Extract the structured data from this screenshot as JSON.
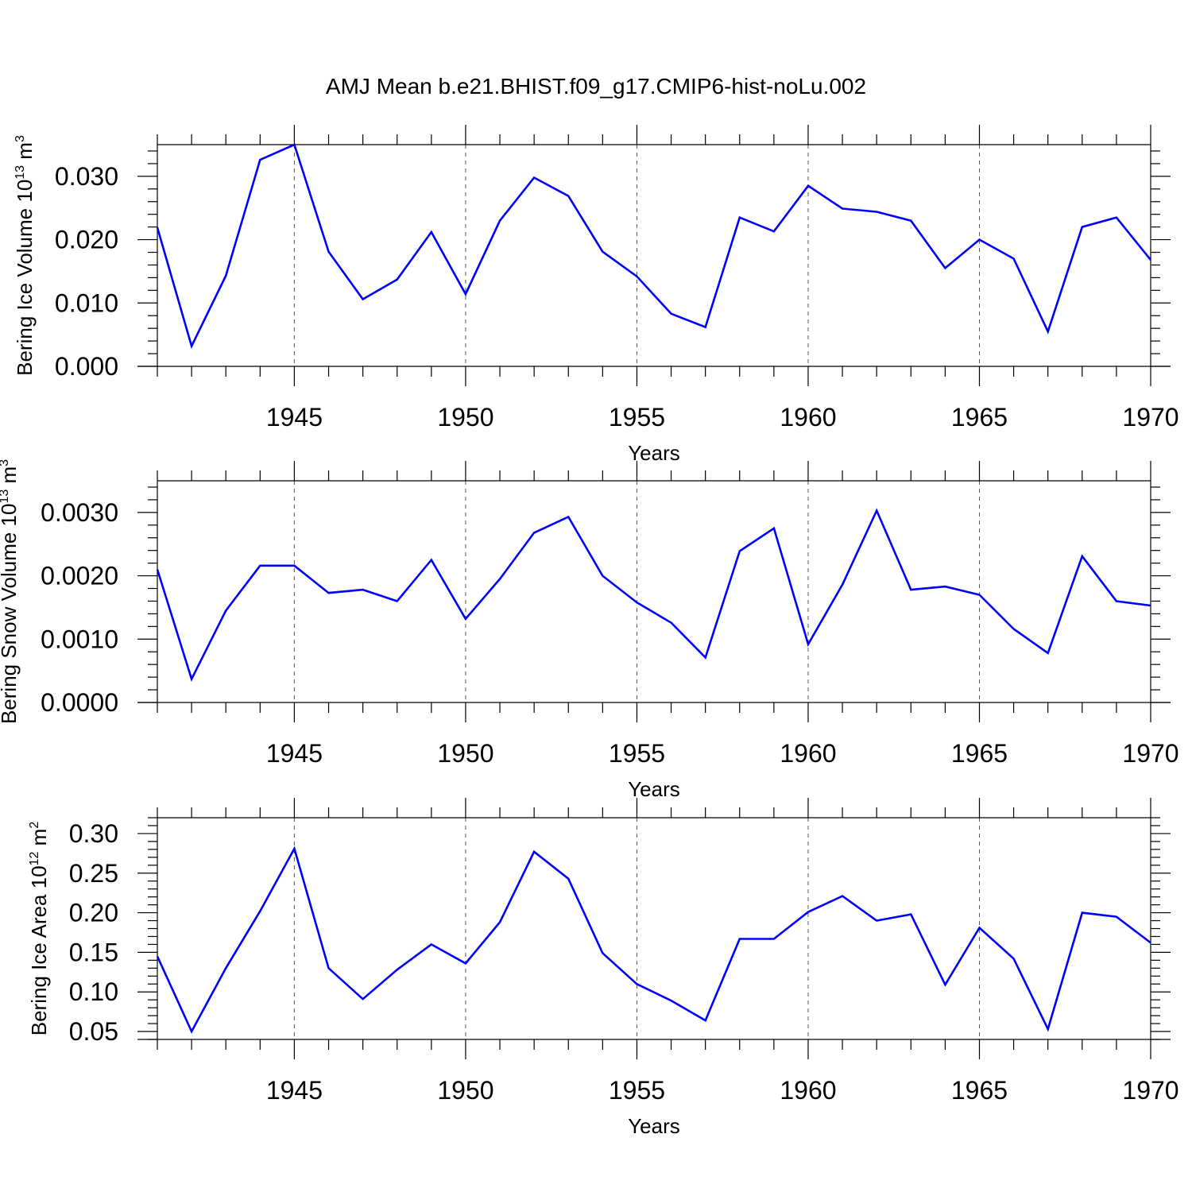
{
  "title": "AMJ Mean b.e21.BHIST.f09_g17.CMIP6-hist-noLu.002",
  "colors": {
    "line": "#0000ff",
    "axes": "#000000",
    "grid": "#555555"
  },
  "chart_data": [
    {
      "type": "line",
      "ylabel": {
        "base": "Bering Ice Volume 10",
        "exp": "13",
        "unit": " m",
        "unit_exp": "3"
      },
      "xlabel": "Years",
      "xlim": [
        1941,
        1970
      ],
      "ylim": [
        0.0,
        0.035
      ],
      "xticks": [
        1945,
        1950,
        1955,
        1960,
        1965,
        1970
      ],
      "yticks": [
        0.0,
        0.01,
        0.02,
        0.03
      ],
      "ytick_labels": [
        "0.000",
        "0.010",
        "0.020",
        "0.030"
      ],
      "grid": "vertical dashed at major x ticks",
      "x": [
        1941,
        1942,
        1943,
        1944,
        1945,
        1946,
        1947,
        1948,
        1949,
        1950,
        1951,
        1952,
        1953,
        1954,
        1955,
        1956,
        1957,
        1958,
        1959,
        1960,
        1961,
        1962,
        1963,
        1964,
        1965,
        1966,
        1967,
        1968,
        1969,
        1970
      ],
      "series": [
        {
          "values": [
            0.0219,
            0.0032,
            0.0143,
            0.0326,
            0.035,
            0.0181,
            0.0106,
            0.0137,
            0.0212,
            0.0114,
            0.023,
            0.0298,
            0.0269,
            0.0181,
            0.0142,
            0.0083,
            0.0062,
            0.0235,
            0.0213,
            0.0285,
            0.0249,
            0.0244,
            0.023,
            0.0155,
            0.02,
            0.017,
            0.0055,
            0.022,
            0.0235,
            0.0168
          ]
        }
      ]
    },
    {
      "type": "line",
      "ylabel": {
        "base": "Bering Snow Volume 10",
        "exp": "13",
        "unit": " m",
        "unit_exp": "3"
      },
      "xlabel": "Years",
      "xlim": [
        1941,
        1970
      ],
      "ylim": [
        0.0,
        0.0035
      ],
      "xticks": [
        1945,
        1950,
        1955,
        1960,
        1965,
        1970
      ],
      "yticks": [
        0.0,
        0.001,
        0.002,
        0.003
      ],
      "ytick_labels": [
        "0.0000",
        "0.0010",
        "0.0020",
        "0.0030"
      ],
      "grid": "vertical dashed at major x ticks",
      "x": [
        1941,
        1942,
        1943,
        1944,
        1945,
        1946,
        1947,
        1948,
        1949,
        1950,
        1951,
        1952,
        1953,
        1954,
        1955,
        1956,
        1957,
        1958,
        1959,
        1960,
        1961,
        1962,
        1963,
        1964,
        1965,
        1966,
        1967,
        1968,
        1969,
        1970
      ],
      "series": [
        {
          "values": [
            0.0021,
            0.00037,
            0.00145,
            0.00216,
            0.00216,
            0.00173,
            0.00178,
            0.0016,
            0.00225,
            0.00132,
            0.00195,
            0.00268,
            0.00293,
            0.002,
            0.00158,
            0.00126,
            0.00071,
            0.00239,
            0.00275,
            0.00092,
            0.00186,
            0.00303,
            0.00178,
            0.00183,
            0.0017,
            0.00116,
            0.00078,
            0.00231,
            0.0016,
            0.00153
          ]
        }
      ]
    },
    {
      "type": "line",
      "ylabel": {
        "base": "Bering Ice Area 10",
        "exp": "12",
        "unit": " m",
        "unit_exp": "2"
      },
      "xlabel": "Years",
      "xlim": [
        1941,
        1970
      ],
      "ylim": [
        0.04,
        0.32
      ],
      "xticks": [
        1945,
        1950,
        1955,
        1960,
        1965,
        1970
      ],
      "yticks": [
        0.05,
        0.1,
        0.15,
        0.2,
        0.25,
        0.3
      ],
      "ytick_labels": [
        "0.05",
        "0.10",
        "0.15",
        "0.20",
        "0.25",
        "0.30"
      ],
      "grid": "vertical dashed at major x ticks",
      "x": [
        1941,
        1942,
        1943,
        1944,
        1945,
        1946,
        1947,
        1948,
        1949,
        1950,
        1951,
        1952,
        1953,
        1954,
        1955,
        1956,
        1957,
        1958,
        1959,
        1960,
        1961,
        1962,
        1963,
        1964,
        1965,
        1966,
        1967,
        1968,
        1969,
        1970
      ],
      "series": [
        {
          "values": [
            0.145,
            0.05,
            0.13,
            0.202,
            0.281,
            0.13,
            0.091,
            0.128,
            0.16,
            0.136,
            0.188,
            0.277,
            0.243,
            0.149,
            0.11,
            0.089,
            0.064,
            0.167,
            0.167,
            0.201,
            0.221,
            0.19,
            0.198,
            0.109,
            0.181,
            0.142,
            0.053,
            0.2,
            0.195,
            0.162
          ]
        }
      ]
    }
  ]
}
